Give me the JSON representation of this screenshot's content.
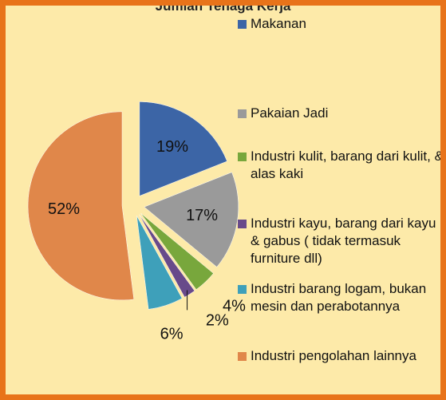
{
  "chart_data": {
    "type": "pie",
    "title": "Jumlah Tenaga Kerja",
    "categories": [
      "Makanan",
      "Pakaian Jadi",
      "Industri kulit, barang dari kulit, & alas kaki",
      "Industri kayu, barang dari kayu & gabus ( tidak termasuk furniture dll)",
      "Industri barang logam, bukan mesin dan perabotannya",
      "Industri pengolahan lainnya"
    ],
    "values": [
      19,
      17,
      4,
      2,
      6,
      52
    ],
    "value_labels": [
      "19%",
      "17%",
      "4%",
      "2%",
      "6%",
      "52%"
    ],
    "colors": [
      "#3c65a6",
      "#9a9a9a",
      "#78a73c",
      "#684a8a",
      "#3ea0ba",
      "#e0874a"
    ],
    "legend": "right"
  }
}
